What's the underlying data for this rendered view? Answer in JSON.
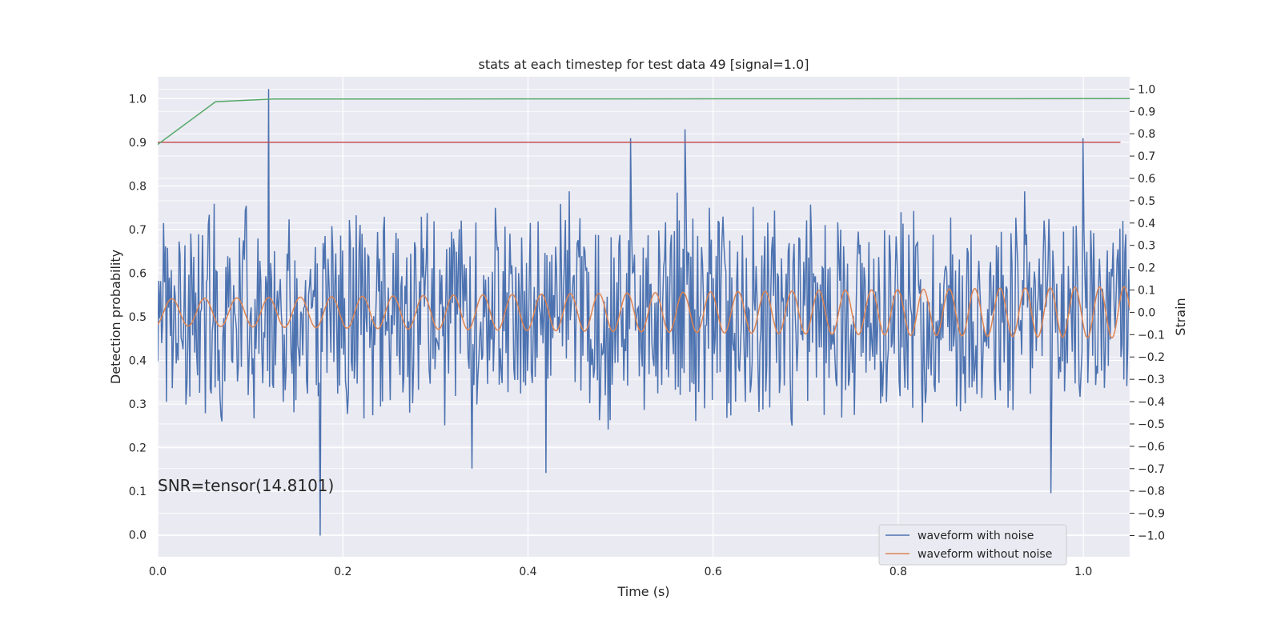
{
  "chart_data": {
    "type": "line",
    "title": "stats at each timestep for test data 49 [signal=1.0]",
    "xlabel": "Time (s)",
    "ylabel": "Detection probability",
    "y2label": "Strain",
    "xlim": [
      0.0,
      1.05
    ],
    "ylim": [
      -0.05,
      1.05
    ],
    "y2lim": [
      -1.095,
      1.055
    ],
    "xticks": [
      "0.0",
      "0.2",
      "0.4",
      "0.6",
      "0.8",
      "1.0"
    ],
    "yticks": [
      "0.0",
      "0.1",
      "0.2",
      "0.3",
      "0.4",
      "0.5",
      "0.6",
      "0.7",
      "0.8",
      "0.9",
      "1.0"
    ],
    "y2ticks": [
      "−1.0",
      "−0.9",
      "−0.8",
      "−0.7",
      "−0.6",
      "−0.5",
      "−0.4",
      "−0.3",
      "−0.2",
      "−0.1",
      "0.0",
      "0.1",
      "0.2",
      "0.3",
      "0.4",
      "0.5",
      "0.6",
      "0.7",
      "0.8",
      "0.9",
      "1.0"
    ],
    "grid": true,
    "legend_position": "lower-right",
    "annotation": "SNR=tensor(14.8101)",
    "threshold": {
      "y": 0.9,
      "x": [
        0.0,
        1.04
      ],
      "color": "#c44e52"
    },
    "detection_probability": {
      "color": "#55a868",
      "x": [
        0.0,
        0.0625,
        0.125,
        1.05
      ],
      "y": [
        0.895,
        0.993,
        0.999,
        1.0
      ]
    },
    "series": [
      {
        "name": "waveform with noise",
        "color": "#4c72b0",
        "axis": "right",
        "x_start": 0.0,
        "x_end": 1.05,
        "n_points": 1000,
        "y_range": [
          -0.55,
          0.55
        ],
        "spikes": [
          {
            "x": 0.12,
            "y": 1.0
          },
          {
            "x": 0.176,
            "y": -1.0
          },
          {
            "x": 0.34,
            "y": -0.7
          },
          {
            "x": 0.419,
            "y": -0.72
          },
          {
            "x": 0.511,
            "y": 0.78
          },
          {
            "x": 0.57,
            "y": 0.82
          },
          {
            "x": 0.965,
            "y": -0.81
          },
          {
            "x": 1.0,
            "y": 0.78
          }
        ]
      },
      {
        "name": "waveform without noise",
        "color": "#dd8452",
        "axis": "right",
        "x_start": 0.0,
        "x_end": 1.05,
        "frequency_hz_start": 28,
        "frequency_hz_end": 38,
        "amplitude_start": 0.06,
        "amplitude_end": 0.115
      }
    ]
  }
}
